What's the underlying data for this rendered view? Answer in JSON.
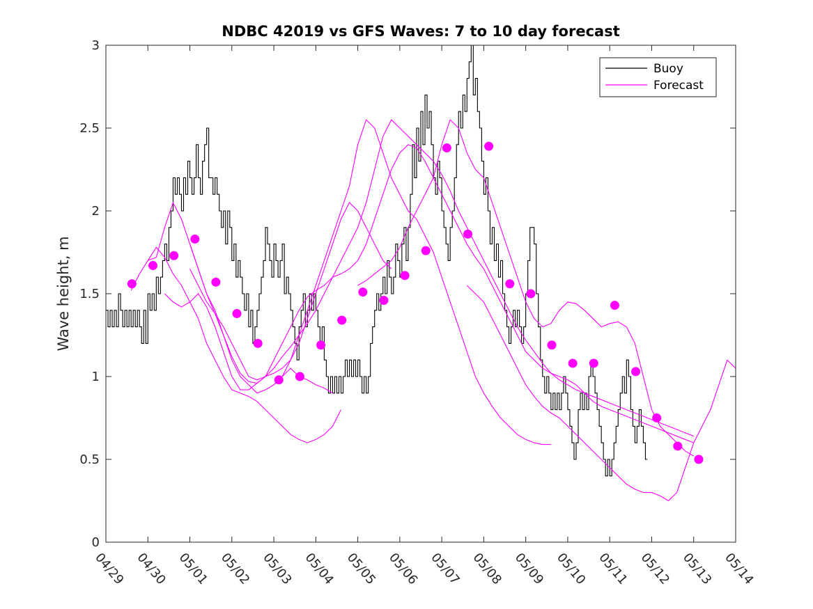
{
  "chart_data": {
    "type": "line",
    "title": "NDBC 42019 vs GFS Waves: 7 to 10 day forecast",
    "xlabel": "",
    "ylabel": "Wave height, m",
    "xlim": [
      0,
      15
    ],
    "ylim": [
      0,
      3
    ],
    "yticks": [
      0,
      0.5,
      1,
      1.5,
      2,
      2.5,
      3
    ],
    "ytick_labels": [
      "0",
      "0.5",
      "1",
      "1.5",
      "2",
      "2.5",
      "3"
    ],
    "xtick_labels": [
      "04/29",
      "04/30",
      "05/01",
      "05/02",
      "05/03",
      "05/04",
      "05/05",
      "05/06",
      "05/07",
      "05/08",
      "05/09",
      "05/10",
      "05/11",
      "05/12",
      "05/13",
      "05/14"
    ],
    "legend": {
      "position": "top-right",
      "entries": [
        {
          "name": "Buoy",
          "color": "#000000"
        },
        {
          "name": "Forecast",
          "color": "#ff00ff"
        }
      ]
    },
    "colors": {
      "buoy": "#000000",
      "forecast": "#ff00ff"
    },
    "buoy": {
      "x_start": 0,
      "dx": 0.05,
      "values": [
        1.4,
        1.3,
        1.4,
        1.3,
        1.4,
        1.3,
        1.5,
        1.4,
        1.3,
        1.4,
        1.3,
        1.4,
        1.3,
        1.4,
        1.3,
        1.4,
        1.3,
        1.2,
        1.4,
        1.2,
        1.5,
        1.4,
        1.5,
        1.4,
        1.6,
        1.5,
        1.6,
        1.7,
        1.8,
        1.7,
        1.9,
        2.0,
        2.2,
        2.1,
        2.2,
        2.1,
        2.0,
        2.2,
        2.1,
        2.3,
        2.2,
        2.1,
        2.2,
        2.4,
        2.2,
        2.1,
        2.3,
        2.4,
        2.5,
        2.2,
        2.2,
        2.1,
        2.2,
        2.1,
        2.0,
        1.9,
        2.0,
        1.8,
        2.0,
        1.9,
        1.7,
        1.8,
        1.6,
        1.7,
        1.6,
        1.5,
        1.4,
        1.5,
        1.3,
        1.4,
        1.2,
        1.3,
        1.4,
        1.5,
        1.6,
        1.7,
        1.9,
        1.8,
        1.7,
        1.6,
        1.8,
        1.7,
        1.6,
        1.7,
        1.8,
        1.5,
        1.6,
        1.5,
        1.4,
        1.3,
        1.2,
        1.1,
        1.3,
        1.4,
        1.5,
        1.3,
        1.4,
        1.5,
        1.4,
        1.5,
        1.4,
        1.3,
        1.2,
        1.3,
        1.1,
        1.0,
        0.9,
        1.0,
        0.9,
        1.0,
        0.9,
        1.0,
        0.9,
        1.0,
        1.1,
        1.0,
        1.1,
        1.0,
        1.1,
        1.0,
        1.1,
        1.0,
        0.9,
        1.0,
        0.9,
        1.0,
        1.2,
        1.3,
        1.4,
        1.5,
        1.4,
        1.5,
        1.6,
        1.5,
        1.7,
        1.6,
        1.5,
        1.6,
        1.8,
        1.7,
        1.6,
        1.8,
        1.9,
        1.7,
        1.9,
        2.1,
        2.4,
        2.2,
        2.5,
        2.3,
        2.6,
        2.4,
        2.7,
        2.5,
        2.6,
        2.4,
        2.2,
        2.1,
        2.3,
        2.2,
        2.0,
        1.9,
        1.8,
        1.7,
        1.9,
        2.0,
        2.2,
        2.4,
        2.6,
        2.5,
        2.7,
        2.6,
        2.8,
        2.9,
        3.0,
        2.7,
        2.8,
        2.6,
        2.5,
        2.3,
        2.1,
        2.2,
        2.0,
        1.8,
        1.9,
        1.7,
        1.8,
        1.6,
        1.7,
        1.5,
        1.4,
        1.3,
        1.2,
        1.3,
        1.4,
        1.3,
        1.4,
        1.3,
        1.2,
        1.3,
        1.5,
        1.7,
        1.9,
        1.9,
        1.8,
        1.5,
        1.3,
        1.1,
        1.0,
        0.9,
        1.0,
        0.9,
        0.8,
        0.9,
        0.8,
        0.9,
        0.8,
        0.9,
        1.0,
        0.9,
        0.8,
        0.7,
        0.6,
        0.5,
        0.6,
        0.8,
        0.9,
        0.8,
        0.9,
        0.8,
        1.0,
        1.1,
        1.0,
        0.9,
        0.8,
        0.7,
        0.6,
        0.5,
        0.4,
        0.5,
        0.4,
        0.5,
        0.6,
        0.7,
        0.8,
        0.9,
        1.0,
        0.9,
        1.1,
        1.0,
        0.8,
        0.7,
        0.6,
        0.7,
        0.8,
        0.7,
        0.6,
        0.5
      ]
    },
    "forecast_runs": [
      {
        "x": [
          0.6,
          0.8,
          1.0,
          1.2,
          1.4,
          1.6,
          1.8,
          2.0,
          2.2,
          2.4,
          2.6,
          2.8,
          3.0,
          3.2,
          3.4,
          3.6,
          3.8,
          4.0,
          4.2,
          4.4,
          4.6,
          4.8,
          5.0,
          5.2,
          5.4,
          5.6
        ],
        "y": [
          1.52,
          1.62,
          1.7,
          1.78,
          1.72,
          1.62,
          1.55,
          1.45,
          1.35,
          1.2,
          1.1,
          1.0,
          0.92,
          0.9,
          0.88,
          0.85,
          0.8,
          0.75,
          0.7,
          0.65,
          0.62,
          0.6,
          0.62,
          0.65,
          0.7,
          0.8
        ]
      },
      {
        "x": [
          1.0,
          1.2,
          1.4,
          1.6,
          1.8,
          2.0,
          2.2,
          2.4,
          2.6,
          2.8,
          3.0,
          3.2,
          3.4,
          3.6,
          3.8,
          4.0,
          4.2,
          4.4,
          4.6,
          4.8,
          5.0,
          5.2,
          5.4
        ],
        "y": [
          1.7,
          1.72,
          1.9,
          2.05,
          1.95,
          1.8,
          1.65,
          1.5,
          1.4,
          1.25,
          1.1,
          1.0,
          0.95,
          0.9,
          0.92,
          0.95,
          1.0,
          1.05,
          1.0,
          0.98,
          0.95,
          0.93,
          0.9
        ]
      },
      {
        "x": [
          1.4,
          1.6,
          1.8,
          2.0,
          2.2,
          2.4,
          2.6,
          2.8,
          3.0,
          3.2,
          3.4,
          3.6,
          3.8,
          4.0,
          4.2,
          4.4,
          4.6,
          4.8,
          5.0,
          5.2,
          5.4,
          5.6,
          5.8,
          6.0,
          6.2,
          6.4,
          6.6,
          6.8
        ],
        "y": [
          1.5,
          1.45,
          1.42,
          1.45,
          1.5,
          1.42,
          1.3,
          1.15,
          1.0,
          0.92,
          0.92,
          0.96,
          1.0,
          1.02,
          1.05,
          1.1,
          1.2,
          1.35,
          1.5,
          1.65,
          1.8,
          1.95,
          2.05,
          2.0,
          1.9,
          1.8,
          1.7,
          1.65
        ]
      },
      {
        "x": [
          2.0,
          2.2,
          2.4,
          2.6,
          2.8,
          3.0,
          3.2,
          3.4,
          3.6,
          3.8,
          4.0,
          4.2,
          4.4,
          4.6,
          4.8,
          5.0,
          5.2,
          5.4,
          5.6,
          5.8,
          6.0,
          6.2,
          6.4,
          6.6,
          6.8,
          7.0,
          7.2,
          7.4,
          7.6,
          7.8,
          8.0,
          8.2,
          8.4,
          8.6,
          8.8,
          9.0,
          9.2,
          9.4,
          9.6,
          9.8,
          10.0,
          10.2,
          10.4,
          10.6,
          10.8,
          11.0,
          11.2,
          11.4,
          11.6,
          11.8,
          12.0,
          12.2,
          12.4,
          12.6,
          12.8,
          13.0,
          13.2,
          13.4,
          13.6,
          13.8,
          14.0
        ],
        "y": [
          1.65,
          1.55,
          1.45,
          1.38,
          1.3,
          1.2,
          1.1,
          1.0,
          0.98,
          1.0,
          1.1,
          1.2,
          1.3,
          1.4,
          1.48,
          1.52,
          1.55,
          1.6,
          1.62,
          1.65,
          1.7,
          1.8,
          1.95,
          2.1,
          2.25,
          2.35,
          2.4,
          2.38,
          2.3,
          2.2,
          2.1,
          2.0,
          1.9,
          1.8,
          1.72,
          1.65,
          1.55,
          1.45,
          1.35,
          1.25,
          1.15,
          1.1,
          1.05,
          1.02,
          1.0,
          0.98,
          0.95,
          0.9,
          0.85,
          0.82,
          0.8,
          0.78,
          0.76,
          0.74,
          0.72,
          0.7,
          0.68,
          0.66,
          0.64,
          0.62,
          0.6
        ]
      },
      {
        "x": [
          2.0,
          2.2,
          2.4,
          2.6,
          2.8,
          3.0,
          3.2,
          3.4,
          3.6,
          3.8,
          4.0,
          4.2,
          4.4,
          4.6,
          4.8,
          5.0,
          5.2,
          5.4,
          5.6,
          5.8,
          6.0,
          6.2,
          6.4,
          6.6,
          6.8,
          7.0,
          7.2,
          7.4,
          7.6,
          7.8,
          8.0,
          8.2,
          8.4,
          8.6,
          8.8,
          9.0,
          9.2,
          9.4,
          9.6,
          9.8,
          10.0,
          10.2,
          10.4,
          10.6,
          10.8,
          11.0,
          11.2,
          11.4,
          11.6,
          11.8,
          12.0,
          12.2,
          12.4,
          12.6,
          12.8,
          13.0,
          13.2,
          13.4,
          13.6,
          13.8,
          14.0
        ],
        "y": [
          1.8,
          1.65,
          1.5,
          1.38,
          1.25,
          1.12,
          1.02,
          0.97,
          0.96,
          1.0,
          1.05,
          1.12,
          1.18,
          1.25,
          1.32,
          1.4,
          1.5,
          1.6,
          1.7,
          1.8,
          1.9,
          2.05,
          2.25,
          2.45,
          2.55,
          2.5,
          2.45,
          2.4,
          2.35,
          2.3,
          2.22,
          2.12,
          2.0,
          1.9,
          1.8,
          1.7,
          1.6,
          1.5,
          1.4,
          1.3,
          1.22,
          1.15,
          1.08,
          1.02,
          0.98,
          0.95,
          0.92,
          0.9,
          0.88,
          0.86,
          0.84,
          0.82,
          0.8,
          0.78,
          0.76,
          0.74,
          0.72,
          0.7,
          0.68,
          0.66,
          0.64
        ]
      },
      {
        "x": [
          4.0,
          4.2,
          4.4,
          4.6,
          4.8,
          5.0,
          5.2,
          5.4,
          5.6,
          5.8,
          6.0,
          6.2,
          6.4,
          6.6,
          6.8,
          7.0,
          7.2,
          7.4,
          7.6,
          7.8,
          8.0,
          8.2,
          8.4,
          8.6,
          8.8,
          9.0,
          9.2,
          9.4,
          9.6,
          9.8,
          10.0,
          10.2,
          10.4,
          10.6
        ],
        "y": [
          0.95,
          1.0,
          1.1,
          1.25,
          1.4,
          1.55,
          1.7,
          1.85,
          2.0,
          2.15,
          2.4,
          2.55,
          2.5,
          2.35,
          2.2,
          2.1,
          2.0,
          1.95,
          1.85,
          1.75,
          1.6,
          1.45,
          1.3,
          1.15,
          1.0,
          0.9,
          0.82,
          0.75,
          0.7,
          0.65,
          0.62,
          0.6,
          0.59,
          0.59
        ]
      },
      {
        "x": [
          6.0,
          6.2,
          6.4,
          6.6,
          6.8,
          7.0,
          7.2,
          7.4,
          7.6,
          7.8,
          8.0,
          8.2,
          8.4,
          8.6,
          8.8,
          9.0,
          9.2,
          9.4,
          9.6,
          9.8,
          10.0,
          10.2,
          10.4,
          10.6,
          10.8,
          11.0,
          11.2,
          11.4,
          11.6,
          11.8,
          12.0,
          12.2,
          12.4,
          12.6,
          12.8,
          13.0,
          13.2,
          13.4,
          13.6,
          13.8,
          14.0
        ],
        "y": [
          1.55,
          1.58,
          1.62,
          1.66,
          1.7,
          1.78,
          1.9,
          2.0,
          2.1,
          2.2,
          2.4,
          2.55,
          2.5,
          2.35,
          2.25,
          2.2,
          2.05,
          1.9,
          1.75,
          1.6,
          1.45,
          1.35,
          1.3,
          1.32,
          1.4,
          1.45,
          1.44,
          1.4,
          1.35,
          1.3,
          1.32,
          1.33,
          1.3,
          1.2,
          1.0,
          0.8,
          0.7,
          0.65,
          0.6,
          0.55,
          0.52
        ]
      },
      {
        "x": [
          8.6,
          8.8,
          9.0,
          9.2,
          9.4,
          9.6,
          9.8,
          10.0,
          10.2,
          10.4,
          10.6,
          10.8,
          11.0,
          11.2,
          11.4,
          11.6,
          11.8,
          12.0,
          12.2,
          12.4,
          12.6,
          12.8,
          13.0,
          13.2,
          13.4,
          13.6,
          13.8,
          14.0,
          14.2,
          14.4,
          14.6,
          14.8,
          15.0
        ],
        "y": [
          1.55,
          1.5,
          1.45,
          1.35,
          1.25,
          1.15,
          1.05,
          0.95,
          0.88,
          0.82,
          0.78,
          0.75,
          0.7,
          0.65,
          0.6,
          0.55,
          0.5,
          0.45,
          0.4,
          0.35,
          0.32,
          0.3,
          0.3,
          0.28,
          0.25,
          0.3,
          0.45,
          0.6,
          0.7,
          0.8,
          0.95,
          1.1,
          1.05
        ]
      }
    ],
    "forecast_markers": {
      "x": [
        0.62,
        1.12,
        1.62,
        2.12,
        2.62,
        3.12,
        3.62,
        4.12,
        4.62,
        5.12,
        5.62,
        6.12,
        6.62,
        7.12,
        7.62,
        8.12,
        8.62,
        9.12,
        9.62,
        10.12,
        10.62,
        11.12,
        11.62,
        12.12,
        12.62,
        13.12,
        13.62,
        14.12
      ],
      "y": [
        1.56,
        1.67,
        1.73,
        1.83,
        1.57,
        1.38,
        1.2,
        0.98,
        1.0,
        1.19,
        1.34,
        1.51,
        1.46,
        1.61,
        1.76,
        2.38,
        1.86,
        2.39,
        1.56,
        1.5,
        1.19,
        1.08,
        1.08,
        1.43,
        1.03,
        0.75,
        0.58,
        0.5
      ]
    }
  }
}
